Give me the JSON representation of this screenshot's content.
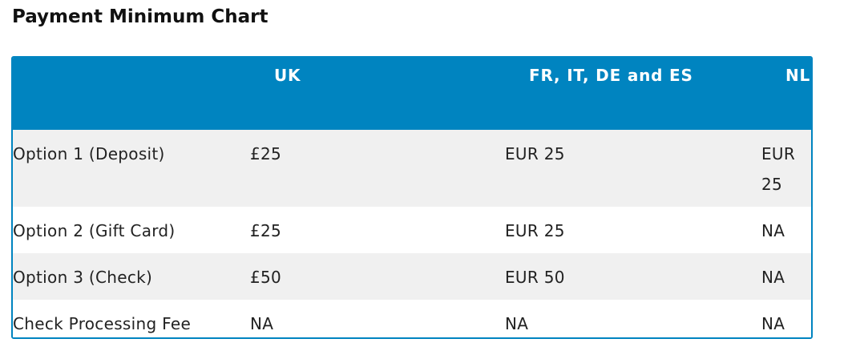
{
  "header": {
    "title": "Payment Minimum Chart"
  },
  "table": {
    "columns": [
      "UK",
      "FR, IT, DE and ES",
      "NL"
    ],
    "rows": [
      [
        "Option 1 (Deposit)",
        "£25",
        "EUR 25",
        "EUR 25"
      ],
      [
        "Option 2 (Gift Card)",
        "£25",
        "EUR 25",
        "NA"
      ],
      [
        "Option 3 (Check)",
        "£50",
        "EUR 50",
        "NA"
      ],
      [
        "Check Processing Fee",
        "NA",
        "NA",
        "NA"
      ]
    ]
  }
}
